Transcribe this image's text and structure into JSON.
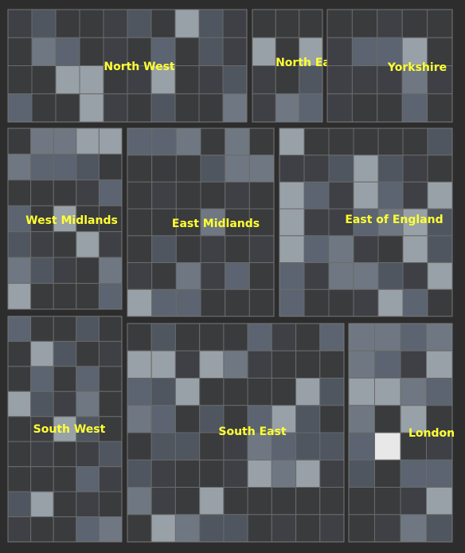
{
  "regions": [
    {
      "name": "North West"
    },
    {
      "name": "North East"
    },
    {
      "name": "Yorkshire"
    },
    {
      "name": "West Midlands"
    },
    {
      "name": "East Midlands"
    },
    {
      "name": "East of England"
    },
    {
      "name": "South West"
    },
    {
      "name": "South East"
    },
    {
      "name": "London"
    }
  ]
}
